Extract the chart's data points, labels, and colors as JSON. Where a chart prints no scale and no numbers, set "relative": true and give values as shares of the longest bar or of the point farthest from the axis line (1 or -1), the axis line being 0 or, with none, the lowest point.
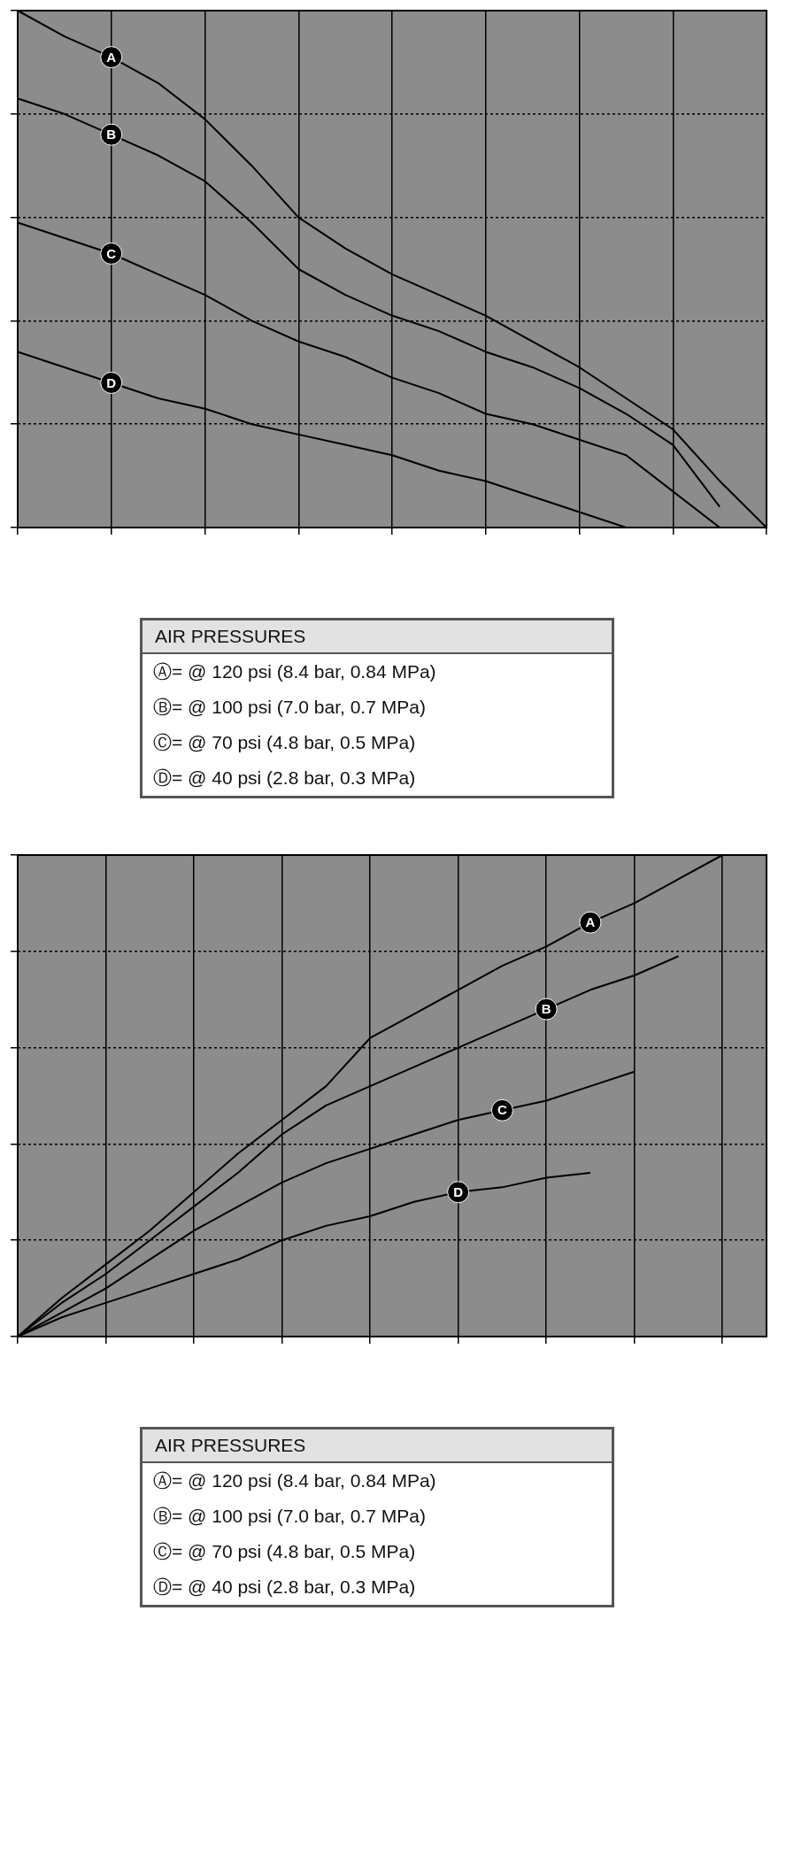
{
  "chart_data": [
    {
      "type": "line",
      "relative": true,
      "grid": true,
      "legend": false,
      "legend_title": "AIR PRESSURES",
      "categories": [
        null,
        null,
        null,
        null,
        null,
        null,
        null,
        null,
        null,
        null,
        null,
        null,
        null,
        null,
        null,
        null,
        null
      ],
      "series": [
        {
          "name": "A",
          "color": "#000000",
          "values": [
            1.0,
            0.95,
            0.91,
            0.86,
            0.79,
            0.7,
            0.6,
            0.54,
            0.49,
            0.45,
            0.41,
            0.36,
            0.31,
            0.25,
            0.19,
            0.09,
            0
          ]
        },
        {
          "name": "B",
          "color": "#000000",
          "values": [
            0.83,
            0.8,
            0.76,
            0.72,
            0.67,
            0.59,
            0.5,
            0.45,
            0.41,
            0.38,
            0.34,
            0.31,
            0.27,
            0.22,
            0.16,
            0.04,
            null
          ]
        },
        {
          "name": "C",
          "color": "#000000",
          "values": [
            0.59,
            0.56,
            0.53,
            0.49,
            0.45,
            0.4,
            0.36,
            0.33,
            0.29,
            0.26,
            0.22,
            0.2,
            0.17,
            0.14,
            0.07,
            0,
            null
          ]
        },
        {
          "name": "D",
          "color": "#000000",
          "values": [
            0.34,
            0.31,
            0.28,
            0.25,
            0.23,
            0.2,
            0.18,
            0.16,
            0.14,
            0.11,
            0.09,
            0.06,
            0.03,
            0,
            null,
            null,
            null
          ]
        }
      ],
      "annotations": [
        "Ⓐ= @ 120 psi (8.4 bar, 0.84 MPa)",
        "Ⓑ= @ 100 psi (7.0 bar, 0.7 MPa)",
        "Ⓒ= @ 70 psi (4.8 bar, 0.5 MPa)",
        "Ⓓ= @ 40 psi (2.8 bar, 0.3 MPa)"
      ]
    },
    {
      "type": "line",
      "relative": true,
      "grid": true,
      "legend": false,
      "legend_title": "AIR PRESSURES",
      "categories": [
        null,
        null,
        null,
        null,
        null,
        null,
        null,
        null,
        null,
        null,
        null,
        null,
        null,
        null,
        null,
        null,
        null,
        null
      ],
      "series": [
        {
          "name": "A",
          "color": "#000000",
          "values": [
            0,
            0.08,
            0.15,
            0.22,
            0.3,
            0.38,
            0.45,
            0.52,
            0.62,
            0.67,
            0.72,
            0.77,
            0.81,
            0.86,
            0.9,
            0.95,
            1.0,
            null
          ]
        },
        {
          "name": "B",
          "color": "#000000",
          "values": [
            0,
            0.07,
            0.13,
            0.2,
            0.27,
            0.34,
            0.42,
            0.48,
            0.52,
            0.56,
            0.6,
            0.64,
            0.68,
            0.72,
            0.75,
            0.79,
            null,
            null
          ]
        },
        {
          "name": "C",
          "color": "#000000",
          "values": [
            0,
            0.05,
            0.1,
            0.16,
            0.22,
            0.27,
            0.32,
            0.36,
            0.39,
            0.42,
            0.45,
            0.47,
            0.49,
            0.52,
            0.55,
            null,
            null,
            null
          ]
        },
        {
          "name": "D",
          "color": "#000000",
          "values": [
            0,
            0.04,
            0.07,
            0.1,
            0.13,
            0.16,
            0.2,
            0.23,
            0.25,
            0.28,
            0.3,
            0.31,
            0.33,
            0.34,
            null,
            null,
            null,
            null
          ]
        }
      ],
      "annotations": [
        "Ⓐ= @ 120 psi (8.4 bar, 0.84 MPa)",
        "Ⓑ= @ 100 psi (7.0 bar, 0.7 MPa)",
        "Ⓒ= @ 70 psi (4.8 bar, 0.5 MPa)",
        "Ⓓ= @ 40 psi (2.8 bar, 0.3 MPa)"
      ]
    }
  ]
}
